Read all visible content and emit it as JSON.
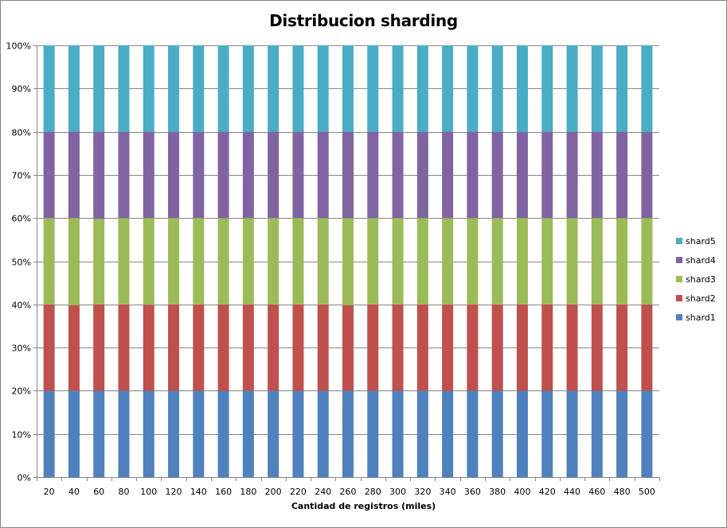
{
  "chart_data": {
    "type": "bar",
    "stacked": true,
    "percent_stacked": true,
    "title": "Distribucion sharding",
    "xlabel": "Cantidad de registros (miles)",
    "ylabel": "",
    "ylim": [
      0,
      100
    ],
    "yticks": [
      "0%",
      "10%",
      "20%",
      "30%",
      "40%",
      "50%",
      "60%",
      "70%",
      "80%",
      "90%",
      "100%"
    ],
    "grid": "horizontal",
    "legend_position": "right",
    "categories": [
      "20",
      "40",
      "60",
      "80",
      "100",
      "120",
      "140",
      "160",
      "180",
      "200",
      "220",
      "240",
      "260",
      "280",
      "300",
      "320",
      "340",
      "360",
      "380",
      "400",
      "420",
      "440",
      "460",
      "480",
      "500"
    ],
    "series": [
      {
        "name": "shard1",
        "color": "#4F81BD",
        "values": [
          20,
          20,
          20,
          20,
          20,
          20,
          20,
          20,
          20,
          20,
          20,
          20,
          20,
          20,
          20,
          20,
          20,
          20,
          20,
          20,
          20,
          20,
          20,
          20,
          20
        ]
      },
      {
        "name": "shard2",
        "color": "#C0504D",
        "values": [
          20,
          19.8,
          20,
          20,
          19.9,
          20,
          20,
          20,
          20,
          20,
          20,
          20,
          19.8,
          20,
          20,
          20,
          20,
          20,
          20,
          20,
          20,
          20,
          20,
          20,
          20
        ]
      },
      {
        "name": "shard3",
        "color": "#9BBB59",
        "values": [
          20,
          20.2,
          19.8,
          20,
          20.1,
          20,
          20,
          20,
          20,
          20,
          20,
          20,
          20.2,
          20,
          20,
          20,
          20,
          20,
          20,
          20,
          20,
          20,
          20,
          20,
          20
        ]
      },
      {
        "name": "shard4",
        "color": "#8064A2",
        "values": [
          20,
          20,
          20.2,
          20,
          20,
          20,
          20,
          20,
          20,
          20,
          20,
          20,
          20,
          20,
          20,
          20,
          20,
          20,
          20,
          20,
          20,
          20,
          20,
          20,
          20
        ]
      },
      {
        "name": "shard5",
        "color": "#4BACC6",
        "values": [
          20,
          20,
          20,
          20,
          20,
          20,
          20,
          20,
          20,
          20,
          20,
          20,
          20,
          20,
          20,
          20,
          20,
          20,
          20,
          20,
          20,
          20,
          20,
          20,
          20
        ]
      }
    ]
  }
}
